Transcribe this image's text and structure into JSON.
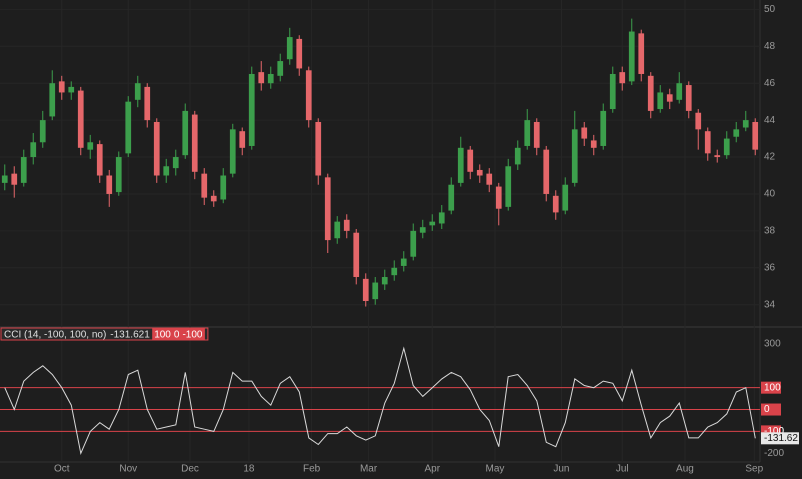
{
  "chart_data": [
    {
      "type": "candlestick",
      "up_color": "#3c9f4c",
      "down_color": "#e5676a",
      "xlim": [
        -0.5,
        79.5
      ],
      "xticks": [
        {
          "value": 6,
          "label": "Oct"
        },
        {
          "value": 13,
          "label": "Nov"
        },
        {
          "value": 19.5,
          "label": "Dec"
        },
        {
          "value": 25.7,
          "label": "18"
        },
        {
          "value": 32.3,
          "label": "Feb"
        },
        {
          "value": 38.3,
          "label": "Mar"
        },
        {
          "value": 45,
          "label": "Apr"
        },
        {
          "value": 51.6,
          "label": "May"
        },
        {
          "value": 58.6,
          "label": "Jun"
        },
        {
          "value": 65,
          "label": "Jul"
        },
        {
          "value": 71.6,
          "label": "Aug"
        },
        {
          "value": 78.9,
          "label": "Sep"
        }
      ],
      "ylim": [
        32.9,
        50.4
      ],
      "yticks": [
        34,
        36,
        38,
        40,
        42,
        44,
        46,
        48,
        50
      ],
      "open": [
        40.6,
        41.1,
        40.6,
        42,
        42.8,
        44.2,
        46.1,
        45.5,
        45.6,
        42.4,
        42.7,
        41,
        40.1,
        42.2,
        45.1,
        45.8,
        43.9,
        41,
        41.4,
        42.1,
        44.3,
        41.1,
        39.9,
        39.7,
        41.1,
        43.4,
        42.6,
        46.6,
        46,
        46.4,
        47.3,
        48.4,
        46.7,
        43.9,
        40.9,
        37.6,
        38.6,
        37.9,
        35.4,
        34.3,
        35.1,
        35.6,
        36.1,
        36.6,
        37.9,
        38.3,
        38.4,
        39.1,
        40.6,
        42.4,
        41.3,
        41.1,
        40.4,
        39.3,
        41.6,
        42.6,
        43.9,
        42.4,
        39.9,
        39.1,
        40.6,
        43.6,
        42.9,
        42.6,
        44.6,
        46.6,
        46.1,
        48.7,
        46.4,
        44.6,
        45.4,
        45.1,
        45.9,
        44.4,
        43.4,
        42.1,
        42.1,
        43.1,
        43.6,
        43.9
      ],
      "high": [
        41.6,
        41.5,
        42.4,
        43.3,
        44.5,
        46.7,
        46.4,
        46.1,
        45.8,
        43.2,
        42.9,
        41.3,
        42.3,
        45.3,
        46.4,
        46,
        44.1,
        41.9,
        42.4,
        44.9,
        44.5,
        41.4,
        40.2,
        41.4,
        43.8,
        43.6,
        46.9,
        47.2,
        46.9,
        47.6,
        49,
        48.6,
        46.9,
        44.1,
        41.1,
        38.8,
        38.9,
        38.1,
        35.7,
        35.5,
        35.9,
        36.4,
        36.9,
        38.4,
        38.6,
        38.9,
        39.4,
        40.9,
        43.1,
        42.6,
        41.6,
        41.4,
        40.6,
        41.9,
        42.9,
        44.6,
        44.1,
        42.6,
        40.2,
        40.9,
        44.5,
        43.9,
        43.2,
        44.9,
        46.9,
        46.9,
        49.5,
        48.9,
        46.6,
        45.9,
        45.7,
        46.6,
        46.1,
        44.6,
        43.6,
        42.4,
        43.4,
        43.9,
        44.5,
        44.1
      ],
      "low": [
        40.2,
        39.8,
        40.4,
        41.6,
        42.5,
        44,
        45.1,
        45.1,
        42.1,
        41.9,
        40.6,
        39.3,
        39.9,
        42,
        44.7,
        43.6,
        40.6,
        40.6,
        41,
        41.9,
        40.8,
        39.4,
        39.3,
        39.5,
        40.9,
        42.1,
        42.4,
        45.6,
        45.7,
        46.1,
        47,
        46.4,
        43.6,
        40.5,
        36.8,
        37.3,
        37.6,
        35.1,
        33.9,
        34,
        34.8,
        35.3,
        35.8,
        36.4,
        37.6,
        38,
        38.1,
        38.9,
        40.4,
        40.8,
        40.6,
        40.1,
        38.3,
        39.1,
        41.3,
        42.4,
        42.1,
        39.6,
        38.6,
        38.9,
        40.4,
        42.6,
        42.1,
        42.4,
        44.4,
        45.6,
        45.9,
        46.1,
        44.1,
        44.4,
        44.6,
        44.9,
        44.1,
        42.4,
        41.8,
        41.7,
        41.9,
        42.8,
        43.4,
        42.1
      ],
      "close": [
        41,
        40.5,
        42,
        42.8,
        44,
        46,
        45.5,
        45.8,
        42.5,
        42.8,
        41,
        40,
        42,
        45,
        46,
        44,
        41,
        41.5,
        42,
        44.5,
        41.2,
        39.8,
        39.6,
        41,
        43.5,
        42.5,
        46.5,
        46,
        46.5,
        47.2,
        48.5,
        46.8,
        44,
        41,
        37.5,
        38.5,
        38,
        35.5,
        34.2,
        35.2,
        35.5,
        36,
        36.5,
        38,
        38.2,
        38.5,
        39,
        40.5,
        42.5,
        41.2,
        41,
        40.5,
        39.2,
        41.5,
        42.5,
        44,
        42.5,
        40,
        39,
        40.5,
        43.5,
        43,
        42.5,
        44.5,
        46.5,
        46,
        48.8,
        46.5,
        44.5,
        45.5,
        45,
        46,
        44.5,
        43.5,
        42.2,
        42,
        43,
        43.5,
        44,
        42.4
      ]
    },
    {
      "type": "cci",
      "title": "CCI (14, -100, 100, no)",
      "color": "#d9d9d9",
      "level_color": "#d9434a",
      "xlim": [
        -0.5,
        79.5
      ],
      "ylim": [
        -240,
        350
      ],
      "yticks": [
        300,
        -100,
        -200
      ],
      "levels": [
        100,
        0,
        -100
      ],
      "current_label": "-131.62",
      "values": [
        100,
        0,
        130,
        170,
        200,
        160,
        100,
        20,
        -200,
        -100,
        -60,
        -90,
        0,
        160,
        180,
        0,
        -90,
        -80,
        -70,
        170,
        -80,
        -90,
        -100,
        0,
        170,
        130,
        130,
        60,
        20,
        120,
        150,
        80,
        -130,
        -160,
        -110,
        -110,
        -80,
        -120,
        -140,
        -120,
        30,
        120,
        280,
        110,
        60,
        100,
        140,
        170,
        150,
        90,
        0,
        -50,
        -170,
        150,
        160,
        110,
        40,
        -150,
        -170,
        -60,
        140,
        110,
        100,
        130,
        120,
        40,
        180,
        20,
        -130,
        -60,
        -30,
        30,
        -130,
        -130,
        -80,
        -60,
        -20,
        80,
        100,
        -131.621
      ]
    }
  ]
}
